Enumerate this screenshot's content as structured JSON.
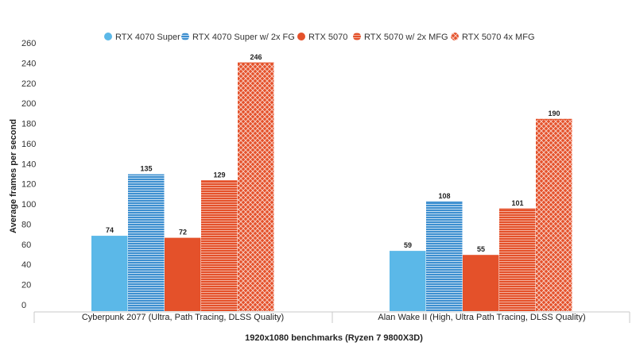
{
  "chart_data": {
    "type": "bar",
    "title": "",
    "xlabel": "1920x1080 benchmarks (Ryzen 7 9800X3D)",
    "ylabel": "Average frames per second",
    "ylim": [
      0,
      260
    ],
    "yticks": [
      0,
      20,
      40,
      60,
      80,
      100,
      120,
      140,
      160,
      180,
      200,
      220,
      240,
      260
    ],
    "grid": false,
    "legend_position": "top-center",
    "categories": [
      "Cyberpunk 2077 (Ultra, Path Tracing, DLSS Quality)",
      "Alan Wake II (High, Ultra Path Tracing, DLSS Quality)"
    ],
    "series": [
      {
        "name": "RTX 4070 Super",
        "values": [
          74,
          59
        ],
        "color": "#5bb8e8",
        "pattern": "solid"
      },
      {
        "name": "RTX 4070 Super w/ 2x FG",
        "values": [
          135,
          108
        ],
        "color": "#3d8fd0",
        "pattern": "horizontal-lines"
      },
      {
        "name": "RTX 5070",
        "values": [
          72,
          55
        ],
        "color": "#e4512a",
        "pattern": "solid"
      },
      {
        "name": "RTX 5070 w/ 2x MFG",
        "values": [
          129,
          101
        ],
        "color": "#e4512a",
        "pattern": "horizontal-lines"
      },
      {
        "name": "RTX 5070 4x MFG",
        "values": [
          246,
          190
        ],
        "color": "#e4512a",
        "pattern": "crosshatch"
      }
    ]
  }
}
